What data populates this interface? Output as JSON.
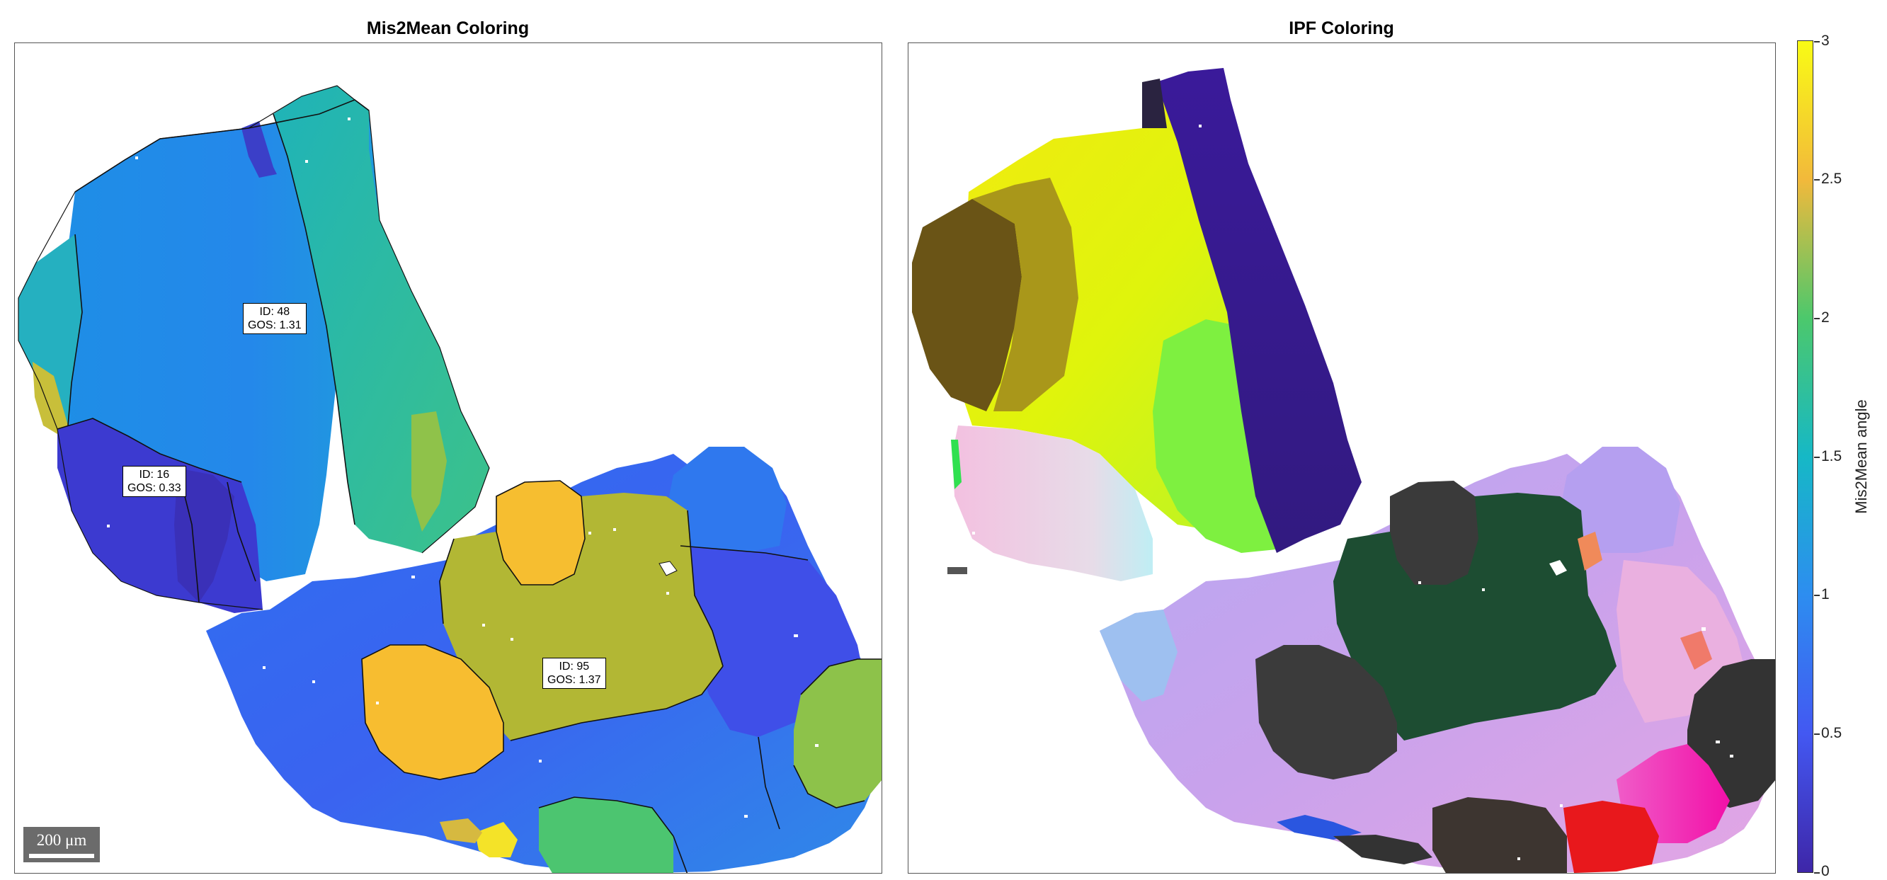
{
  "panels": {
    "left_title": "Mis2Mean Coloring",
    "right_title": "IPF Coloring"
  },
  "grain_labels": [
    {
      "id_text": "ID: 48",
      "gos_text": "GOS: 1.31"
    },
    {
      "id_text": "ID: 16",
      "gos_text": "GOS: 0.33"
    },
    {
      "id_text": "ID: 95",
      "gos_text": "GOS: 1.37"
    }
  ],
  "scalebar": {
    "text": "200 μm"
  },
  "colorbar": {
    "label": "Mis2Mean angle",
    "range": [
      0,
      3
    ],
    "ticks": [
      "0",
      "0.5",
      "1",
      "1.5",
      "2",
      "2.5",
      "3"
    ],
    "colormap": "parula"
  },
  "colors": {
    "parula_0": "#3e26a8",
    "parula_0_5": "#4358f2",
    "parula_1": "#2d8df0",
    "parula_1_5": "#16b8c6",
    "parula_2": "#4cc86c",
    "parula_2_5": "#f2b93b",
    "parula_3": "#f9fb15"
  }
}
